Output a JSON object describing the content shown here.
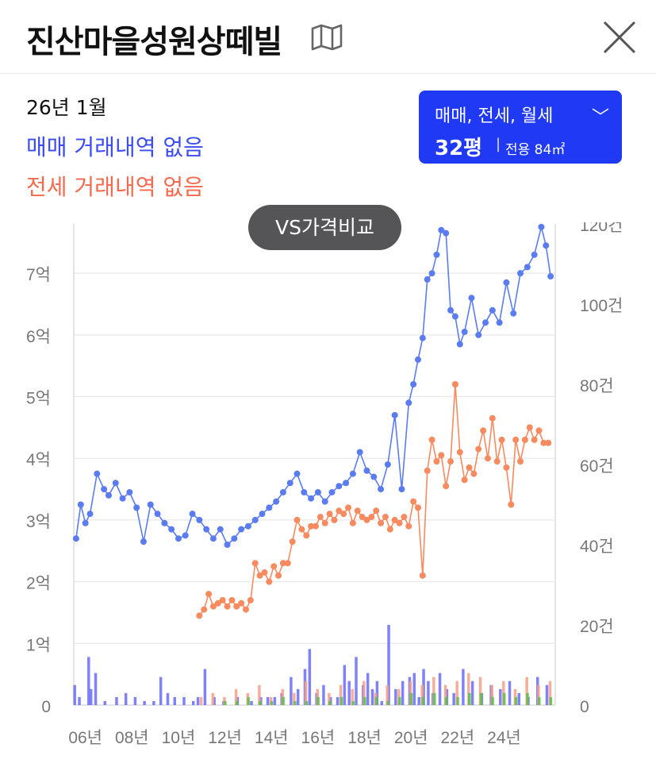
{
  "header": {
    "title": "진산마을성원상떼빌",
    "map_icon": "map-icon",
    "close_icon": "close-icon"
  },
  "info": {
    "date": "26년 1월",
    "sale_status": "매매 거래내역 없음",
    "jeonse_status": "전세 거래내역 없음"
  },
  "filter": {
    "types": "매매, 전세, 월세",
    "size": "32평",
    "separator": "|",
    "area": "전용 84㎡"
  },
  "vs_button": {
    "label": "VS가격비교"
  },
  "colors": {
    "sale": "#5a7cf0",
    "jeonse": "#f78a5f",
    "volume_sale": "#6a6cf5",
    "volume_jeonse": "#f5a08a",
    "volume_monthly": "#5dbf4a",
    "filter_bg": "#1f39f5",
    "grid": "#ececec"
  },
  "chart_data": {
    "type": "line",
    "x_tick_labels": [
      "06년",
      "08년",
      "10년",
      "12년",
      "14년",
      "16년",
      "18년",
      "20년",
      "22년",
      "24년"
    ],
    "y_left_tick_labels": [
      "0",
      "1억",
      "2억",
      "3억",
      "4억",
      "5억",
      "6억",
      "7억"
    ],
    "y_right_tick_labels": [
      "0",
      "20건",
      "40건",
      "60건",
      "80건",
      "100건",
      "120건"
    ],
    "y_left_unit": "억",
    "y_left_range": [
      0,
      7.8
    ],
    "y_right_range": [
      0,
      120
    ],
    "x_range": [
      2005.5,
      2026.2
    ],
    "grid": true,
    "series": [
      {
        "kind": "price_sale",
        "x": [
          2005.6,
          2005.8,
          2006.0,
          2006.2,
          2006.5,
          2006.8,
          2007.0,
          2007.3,
          2007.6,
          2007.9,
          2008.2,
          2008.5,
          2008.8,
          2009.1,
          2009.4,
          2009.7,
          2010.0,
          2010.3,
          2010.6,
          2010.9,
          2011.2,
          2011.5,
          2011.8,
          2012.1,
          2012.4,
          2012.7,
          2013.0,
          2013.3,
          2013.6,
          2013.9,
          2014.2,
          2014.5,
          2014.8,
          2015.1,
          2015.4,
          2015.7,
          2016.0,
          2016.3,
          2016.6,
          2016.9,
          2017.2,
          2017.5,
          2017.8,
          2018.1,
          2018.4,
          2018.7,
          2019.0,
          2019.3,
          2019.6,
          2019.9,
          2020.1,
          2020.3,
          2020.5,
          2020.7,
          2020.9,
          2021.1,
          2021.3,
          2021.5,
          2021.7,
          2021.9,
          2022.1,
          2022.3,
          2022.6,
          2022.9,
          2023.2,
          2023.5,
          2023.8,
          2024.1,
          2024.4,
          2024.7,
          2025.0,
          2025.3,
          2025.6,
          2025.8,
          2026.0
        ],
        "y": [
          2.7,
          3.25,
          2.95,
          3.1,
          3.75,
          3.5,
          3.4,
          3.6,
          3.35,
          3.45,
          3.2,
          2.65,
          3.25,
          3.1,
          2.95,
          2.85,
          2.7,
          2.75,
          3.1,
          3.0,
          2.85,
          2.7,
          2.85,
          2.6,
          2.7,
          2.85,
          2.9,
          3.0,
          3.1,
          3.2,
          3.3,
          3.45,
          3.6,
          3.75,
          3.45,
          3.35,
          3.45,
          3.3,
          3.45,
          3.55,
          3.6,
          3.75,
          4.1,
          3.8,
          3.7,
          3.5,
          3.9,
          4.7,
          3.5,
          4.9,
          5.2,
          5.6,
          5.95,
          6.9,
          7.0,
          7.3,
          7.7,
          7.65,
          6.4,
          6.3,
          5.85,
          6.05,
          6.6,
          6.0,
          6.2,
          6.4,
          6.2,
          6.85,
          6.35,
          7.0,
          7.1,
          7.3,
          7.75,
          7.45,
          6.95
        ]
      },
      {
        "kind": "price_jeonse",
        "x": [
          2010.9,
          2011.1,
          2011.3,
          2011.5,
          2011.7,
          2011.9,
          2012.1,
          2012.3,
          2012.5,
          2012.7,
          2012.9,
          2013.1,
          2013.3,
          2013.5,
          2013.7,
          2013.9,
          2014.1,
          2014.3,
          2014.5,
          2014.7,
          2014.9,
          2015.1,
          2015.3,
          2015.5,
          2015.7,
          2015.9,
          2016.1,
          2016.3,
          2016.5,
          2016.7,
          2016.9,
          2017.1,
          2017.3,
          2017.5,
          2017.7,
          2017.9,
          2018.1,
          2018.3,
          2018.5,
          2018.7,
          2018.9,
          2019.1,
          2019.3,
          2019.5,
          2019.7,
          2019.9,
          2020.1,
          2020.3,
          2020.5,
          2020.7,
          2020.9,
          2021.1,
          2021.3,
          2021.5,
          2021.7,
          2021.9,
          2022.1,
          2022.3,
          2022.5,
          2022.7,
          2022.9,
          2023.1,
          2023.3,
          2023.5,
          2023.7,
          2023.9,
          2024.1,
          2024.3,
          2024.5,
          2024.7,
          2024.9,
          2025.1,
          2025.3,
          2025.5,
          2025.7,
          2025.9
        ],
        "y": [
          1.45,
          1.55,
          1.8,
          1.6,
          1.65,
          1.7,
          1.6,
          1.7,
          1.6,
          1.65,
          1.55,
          1.7,
          2.3,
          2.1,
          2.15,
          2.0,
          2.25,
          2.1,
          2.3,
          2.3,
          2.65,
          3.0,
          2.85,
          2.75,
          2.9,
          2.9,
          3.05,
          2.95,
          3.1,
          3.0,
          3.15,
          3.1,
          3.2,
          2.95,
          3.15,
          3.05,
          3.0,
          3.05,
          3.15,
          2.95,
          3.05,
          2.85,
          3.0,
          2.95,
          3.05,
          2.9,
          3.3,
          3.2,
          2.1,
          3.8,
          4.3,
          3.95,
          4.05,
          3.55,
          3.95,
          5.2,
          4.1,
          3.65,
          3.85,
          3.75,
          4.15,
          4.45,
          4.0,
          4.65,
          3.95,
          4.3,
          3.85,
          3.25,
          4.3,
          3.95,
          4.3,
          4.5,
          4.3,
          4.45,
          4.25,
          4.25
        ]
      },
      {
        "kind": "volume_sale",
        "x": [
          2005.6,
          2005.8,
          2006.2,
          2006.3,
          2006.5,
          2006.9,
          2007.4,
          2007.8,
          2008.2,
          2008.6,
          2009.0,
          2009.3,
          2009.6,
          2009.9,
          2010.3,
          2010.7,
          2010.9,
          2011.2,
          2011.6,
          2012.0,
          2012.6,
          2013.2,
          2013.6,
          2013.9,
          2014.2,
          2014.5,
          2014.9,
          2015.2,
          2015.5,
          2015.7,
          2016.0,
          2016.3,
          2016.6,
          2016.9,
          2017.2,
          2017.4,
          2017.7,
          2018.0,
          2018.2,
          2018.4,
          2018.6,
          2018.8,
          2019.1,
          2019.4,
          2019.7,
          2020.0,
          2020.2,
          2020.4,
          2020.6,
          2020.8,
          2021.0,
          2021.3,
          2021.6,
          2021.9,
          2022.3,
          2022.7,
          2023.1,
          2023.5,
          2023.9,
          2024.3,
          2024.7,
          2025.1,
          2025.5,
          2025.9
        ],
        "y": [
          5,
          2,
          12,
          4,
          8,
          1,
          2,
          3,
          2,
          1,
          1,
          7,
          3,
          2,
          2,
          1,
          2,
          9,
          2,
          1,
          2,
          1,
          2,
          2,
          2,
          3,
          7,
          4,
          9,
          14,
          3,
          5,
          2,
          2,
          10,
          6,
          12,
          5,
          8,
          4,
          6,
          1,
          20,
          4,
          6,
          7,
          8,
          2,
          9,
          6,
          3,
          8,
          4,
          3,
          9,
          6,
          3,
          5,
          4,
          6,
          3,
          2,
          7,
          5
        ]
      },
      {
        "kind": "volume_jeonse",
        "x": [
          2010.9,
          2011.4,
          2011.9,
          2012.4,
          2012.9,
          2013.4,
          2013.9,
          2014.4,
          2014.9,
          2015.4,
          2015.9,
          2016.4,
          2016.9,
          2017.4,
          2017.9,
          2018.4,
          2018.9,
          2019.4,
          2019.9,
          2020.4,
          2020.9,
          2021.4,
          2021.9,
          2022.4,
          2022.9,
          2023.4,
          2023.9,
          2024.4,
          2024.9,
          2025.4,
          2025.9
        ],
        "y": [
          2,
          3,
          2,
          4,
          3,
          5,
          2,
          4,
          3,
          6,
          4,
          3,
          5,
          4,
          6,
          3,
          5,
          4,
          6,
          5,
          7,
          5,
          6,
          8,
          7,
          5,
          6,
          4,
          7,
          5,
          6
        ]
      },
      {
        "kind": "volume_monthly",
        "x": [
          2012.0,
          2012.5,
          2013.0,
          2013.5,
          2014.0,
          2014.5,
          2015.0,
          2015.5,
          2016.0,
          2016.5,
          2017.0,
          2017.5,
          2018.0,
          2018.5,
          2019.0,
          2019.5,
          2020.0,
          2020.5,
          2021.0,
          2021.5,
          2022.0,
          2022.5,
          2023.0,
          2023.5,
          2024.0,
          2024.5,
          2025.0,
          2025.5,
          2026.0
        ],
        "y": [
          1,
          1,
          2,
          1,
          1,
          2,
          1,
          1,
          2,
          1,
          2,
          1,
          2,
          2,
          1,
          2,
          3,
          2,
          3,
          2,
          2,
          3,
          3,
          2,
          3,
          2,
          3,
          2,
          2
        ]
      }
    ]
  }
}
